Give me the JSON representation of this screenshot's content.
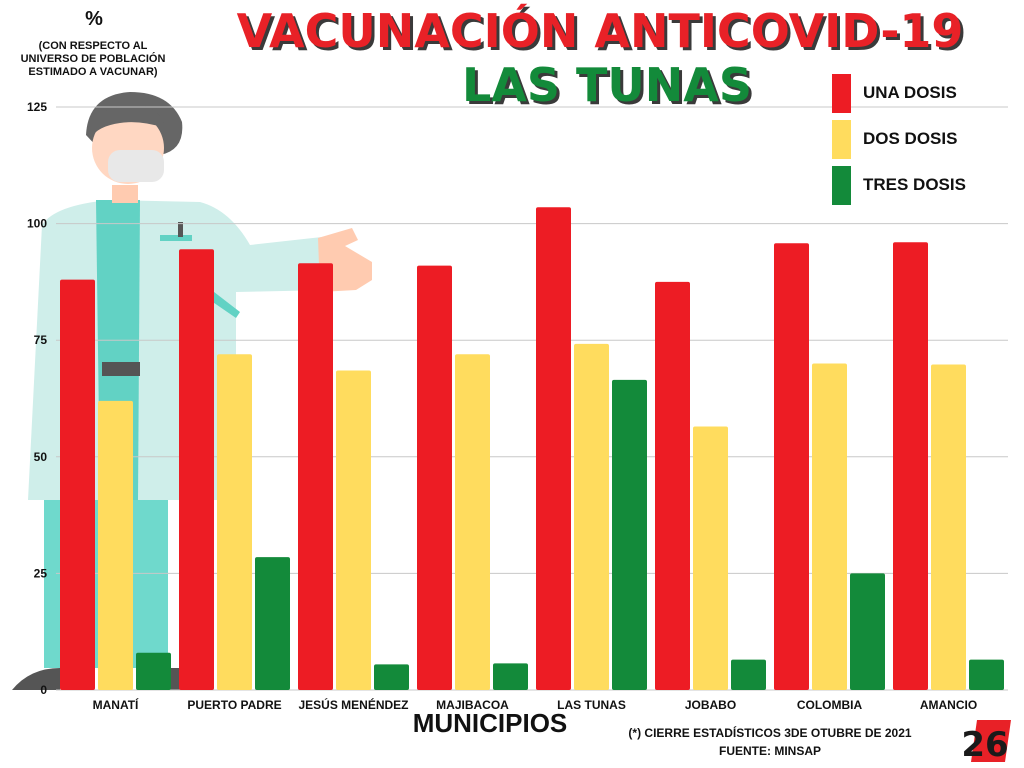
{
  "chart_data": {
    "type": "bar",
    "title": "VACUNACIÓN ANTICOVID-19",
    "subtitle": "LAS TUNAS",
    "ylabel": "%",
    "ylabel_note": "(CON RESPECTO AL UNIVERSO DE POBLACIÓN ESTIMADO A VACUNAR)",
    "xlabel": "MUNICIPIOS",
    "ylim": [
      0,
      125
    ],
    "yticks": [
      0,
      25,
      50,
      75,
      100,
      125
    ],
    "grid": true,
    "legend_position": "top-right",
    "categories": [
      "MANATÍ",
      "PUERTO PADRE",
      "JESÚS MENÉNDEZ",
      "MAJIBACOA",
      "LAS TUNAS",
      "JOBABO",
      "COLOMBIA",
      "AMANCIO"
    ],
    "series": [
      {
        "name": "UNA DOSIS",
        "color": "#ed1c24",
        "values": [
          88,
          94.5,
          91.5,
          91,
          103.5,
          87.5,
          95.8,
          96
        ]
      },
      {
        "name": "DOS DOSIS",
        "color": "#ffdc5e",
        "values": [
          62,
          72,
          68.5,
          72,
          74.2,
          56.5,
          70,
          69.8
        ]
      },
      {
        "name": "TRES DOSIS",
        "color": "#138a3a",
        "values": [
          8,
          28.5,
          5.5,
          5.7,
          66.5,
          6.5,
          25,
          6.5
        ]
      }
    ]
  },
  "footer": {
    "note": "(*) CIERRE ESTADÍSTICOS 3DE OTUBRE DE 2021",
    "source": "FUENTE: MINSAP"
  },
  "logo": {
    "text": "26",
    "color": "#e82127"
  }
}
